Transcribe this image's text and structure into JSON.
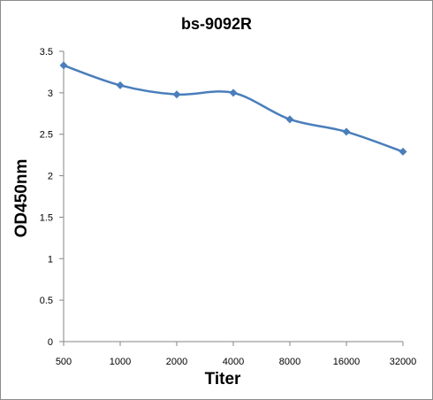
{
  "chart_data": {
    "type": "line",
    "title": "bs-9092R",
    "xlabel": "Titer",
    "ylabel": "OD450nm",
    "categories": [
      "500",
      "1000",
      "2000",
      "4000",
      "8000",
      "16000",
      "32000"
    ],
    "series": [
      {
        "values": [
          3.33,
          3.09,
          2.98,
          3.0,
          2.68,
          2.53,
          2.29
        ],
        "color": "#4a7ebb"
      }
    ],
    "ylim": [
      0,
      3.5
    ],
    "yticks": [
      "0",
      "0.5",
      "1",
      "1.5",
      "2",
      "2.5",
      "3",
      "3.5"
    ],
    "grid": false,
    "legend": "none",
    "marker": "diamond",
    "smooth": true
  }
}
